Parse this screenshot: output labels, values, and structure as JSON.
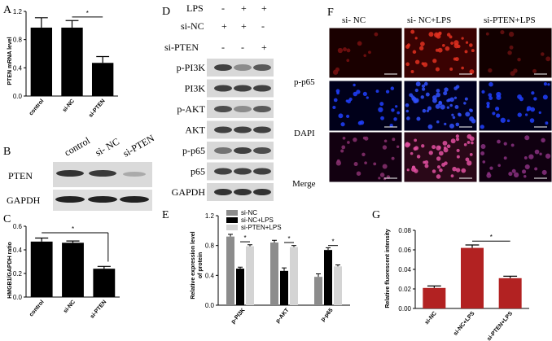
{
  "panels": {
    "A": {
      "label": "A",
      "chart_data": {
        "type": "bar",
        "categories": [
          "control",
          "si-NC",
          "si-PTEN"
        ],
        "values": [
          0.97,
          0.97,
          0.47
        ],
        "errors": [
          0.14,
          0.1,
          0.09
        ],
        "ylabel": "PTEN mRNA level",
        "ylim": [
          0,
          1.2
        ],
        "yticks": [
          "0.0",
          "0.4",
          "0.8",
          "1.2"
        ],
        "bar_color": "#000000",
        "significance": "*"
      }
    },
    "B": {
      "label": "B",
      "columns": [
        "control",
        "si- NC",
        "si-PTEN"
      ],
      "rows": [
        "PTEN",
        "GAPDH"
      ]
    },
    "C": {
      "label": "C",
      "chart_data": {
        "type": "bar",
        "categories": [
          "control",
          "si-NC",
          "si-PTEN"
        ],
        "values": [
          0.47,
          0.46,
          0.24
        ],
        "errors": [
          0.03,
          0.015,
          0.02
        ],
        "ylabel": "HMGB1/GAPDH ratio",
        "ylim": [
          0,
          0.6
        ],
        "yticks": [
          "0.0",
          "0.2",
          "0.4",
          "0.6"
        ],
        "bar_color": "#000000",
        "significance": "*"
      }
    },
    "D": {
      "label": "D",
      "conditions": [
        {
          "name": "LPS",
          "marks": [
            "-",
            "+",
            "+"
          ]
        },
        {
          "name": "si-NC",
          "marks": [
            "+",
            "+",
            "-"
          ]
        },
        {
          "name": "si-PTEN",
          "marks": [
            "-",
            "-",
            "+"
          ]
        }
      ],
      "rows": [
        "p-PI3K",
        "PI3K",
        "p-AKT",
        "AKT",
        "p-p65",
        "p65",
        "GAPDH"
      ]
    },
    "E": {
      "label": "E",
      "chart_data": {
        "type": "bar",
        "categories": [
          "p-PI3K",
          "p-AKT",
          "p-p65"
        ],
        "series": [
          {
            "name": "si-NC",
            "values": [
              0.92,
              0.84,
              0.38
            ],
            "errors": [
              0.03,
              0.03,
              0.04
            ],
            "color": "#8c8c8c"
          },
          {
            "name": "si-NC+LPS",
            "values": [
              0.49,
              0.46,
              0.74
            ],
            "errors": [
              0.02,
              0.04,
              0.03
            ],
            "color": "#000000"
          },
          {
            "name": "si-PTEN+LPS",
            "values": [
              0.79,
              0.78,
              0.52
            ],
            "errors": [
              0.02,
              0.02,
              0.02
            ],
            "color": "#d4d4d4"
          }
        ],
        "ylabel_lines": [
          "Relative expression level",
          "of protein"
        ],
        "ylim": [
          0,
          1.2
        ],
        "yticks": [
          "0.0",
          "0.4",
          "0.8",
          "1.2"
        ],
        "legend": "top-left",
        "significance": "*"
      }
    },
    "F": {
      "label": "F",
      "columns": [
        "si- NC",
        "si- NC+LPS",
        "si-PTEN+LPS"
      ],
      "rows": [
        "p-p65",
        "DAPI",
        "Merge"
      ]
    },
    "G": {
      "label": "G",
      "chart_data": {
        "type": "bar",
        "categories": [
          "si-NC",
          "si-NC+LPS",
          "si-PTEN+LPS"
        ],
        "values": [
          0.021,
          0.062,
          0.031
        ],
        "errors": [
          0.002,
          0.003,
          0.002
        ],
        "ylabel": "Relative fluorescent intensity",
        "ylim": [
          0,
          0.08
        ],
        "yticks": [
          "0.00",
          "0.02",
          "0.04",
          "0.06",
          "0.08"
        ],
        "bar_color": "#b22222",
        "significance": "*"
      }
    }
  }
}
